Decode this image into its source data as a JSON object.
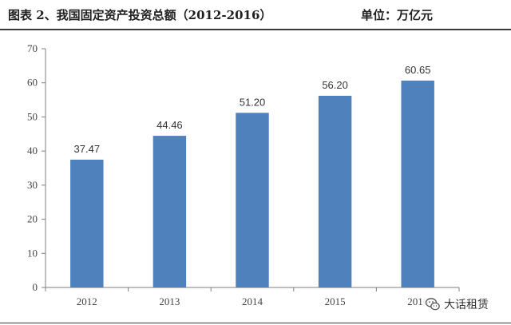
{
  "header": {
    "title": "图表 2、我国固定资产投资总额（2012-2016）",
    "unit": "单位：万亿元"
  },
  "watermark": {
    "text": "大话租赁",
    "icon": "wechat-icon"
  },
  "colors": {
    "bar": "#4f81bd",
    "axis": "#7f7f7f"
  },
  "chart_data": {
    "type": "bar",
    "title": "图表 2、我国固定资产投资总额（2012-2016）",
    "unit": "单位：万亿元",
    "xlabel": "",
    "ylabel": "",
    "categories": [
      "2012",
      "2013",
      "2014",
      "2015",
      "2016"
    ],
    "values": [
      37.47,
      44.46,
      51.2,
      56.2,
      60.65
    ],
    "data_labels": [
      "37.47",
      "44.46",
      "51.20",
      "56.20",
      "60.65"
    ],
    "ylim": [
      0,
      70
    ],
    "yticks": [
      0,
      10,
      20,
      30,
      40,
      50,
      60,
      70
    ],
    "grid": false,
    "legend": "none"
  }
}
